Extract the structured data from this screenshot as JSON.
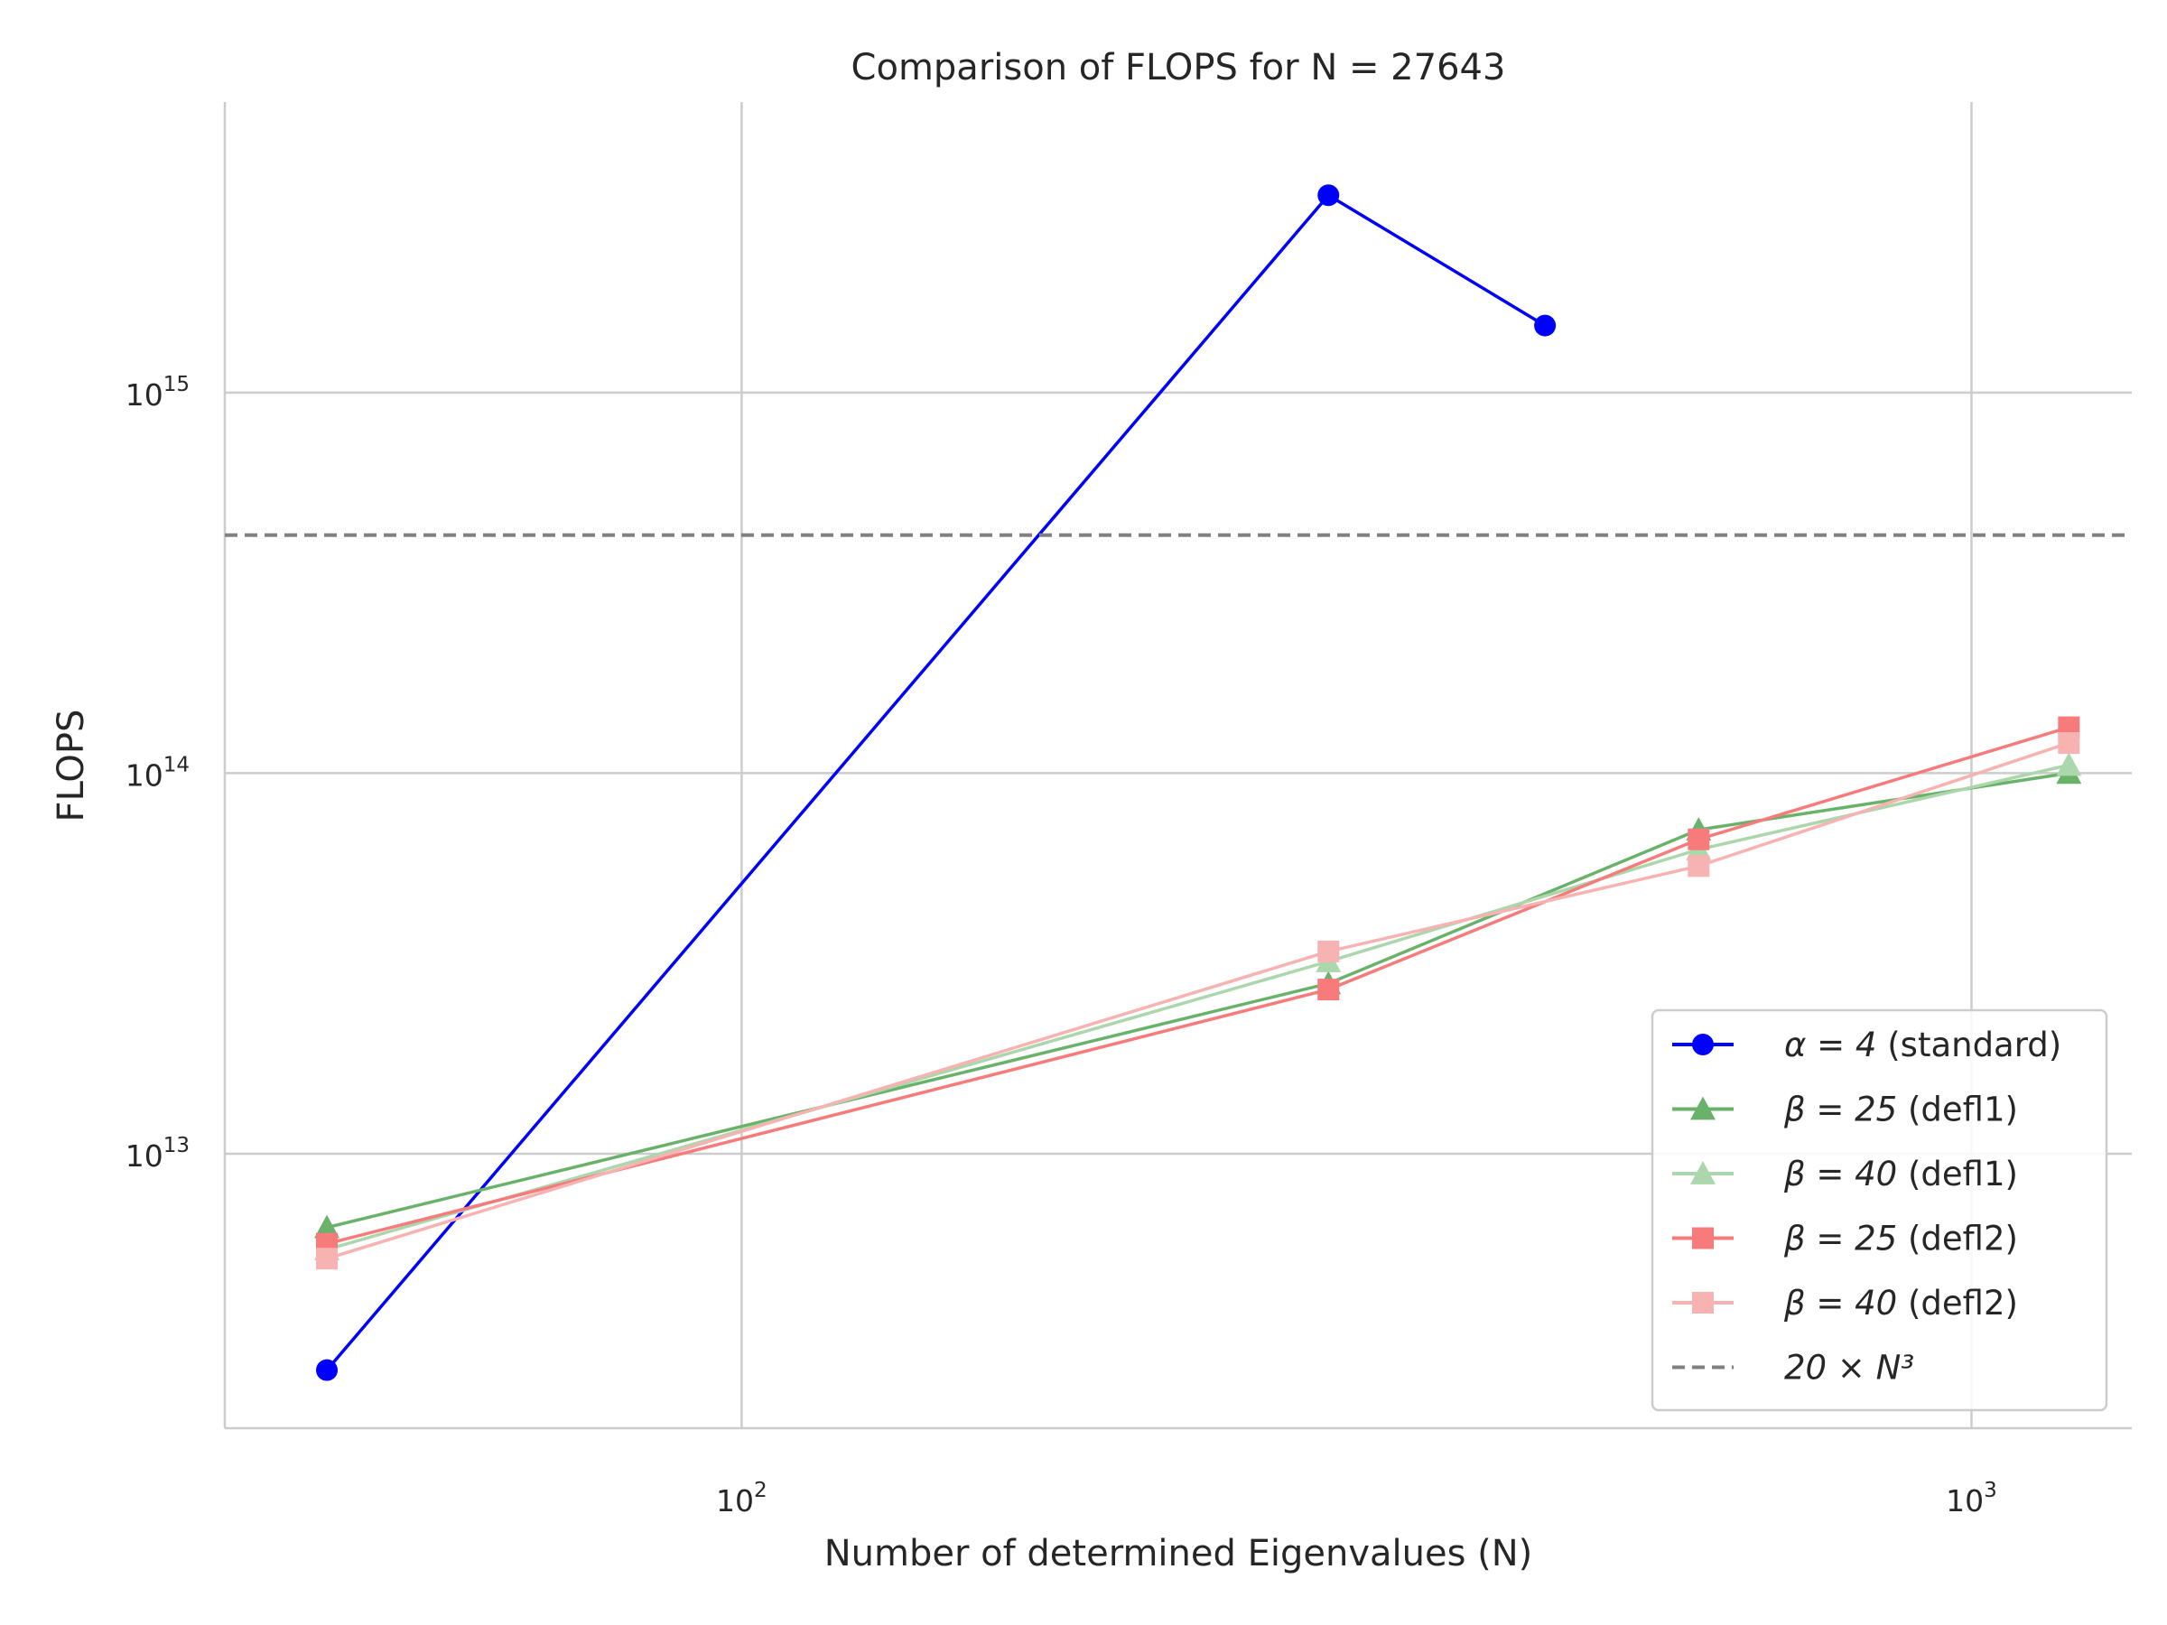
{
  "chart_data": {
    "type": "line",
    "title": "Comparison of FLOPS for N = 27643",
    "xlabel": "Number of determined Eigenvalues (N)",
    "ylabel": "FLOPS",
    "x_scale": "log",
    "y_scale": "log",
    "xlim": [
      38,
      1350
    ],
    "ylim": [
      1900000000000.0,
      5800000000000000.0
    ],
    "xticks": [
      {
        "value": 100,
        "base": "10",
        "exp": "2"
      },
      {
        "value": 1000,
        "base": "10",
        "exp": "3"
      }
    ],
    "yticks": [
      {
        "value": 10000000000000.0,
        "base": "10",
        "exp": "13"
      },
      {
        "value": 100000000000000.0,
        "base": "10",
        "exp": "14"
      },
      {
        "value": 1000000000000000.0,
        "base": "10",
        "exp": "15"
      }
    ],
    "grid": true,
    "legend_position": "lower-right",
    "series": [
      {
        "name_math": "α = 4",
        "name_text": " (standard)",
        "color": "#0000ff",
        "marker": "circle",
        "linestyle": "solid",
        "x": [
          46,
          300,
          450
        ],
        "y": [
          2700000000000.0,
          3300000000000000.0,
          1500000000000000.0
        ]
      },
      {
        "name_math": "β = 25",
        "name_text": " (defl1)",
        "color": "#6ab26a",
        "marker": "triangle",
        "linestyle": "solid",
        "x": [
          46,
          300,
          600,
          1200
        ],
        "y": [
          6400000000000.0,
          28000000000000.0,
          71000000000000.0,
          100000000000000.0
        ]
      },
      {
        "name_math": "β = 40",
        "name_text": " (defl1)",
        "color": "#acd6ac",
        "marker": "triangle",
        "linestyle": "solid",
        "x": [
          46,
          300,
          600,
          1200
        ],
        "y": [
          5600000000000.0,
          32000000000000.0,
          63000000000000.0,
          105000000000000.0
        ]
      },
      {
        "name_math": "β = 25",
        "name_text": " (defl2)",
        "color": "#f77b7b",
        "marker": "square",
        "linestyle": "solid",
        "x": [
          46,
          300,
          600,
          1200
        ],
        "y": [
          5800000000000.0,
          27000000000000.0,
          67000000000000.0,
          132000000000000.0
        ]
      },
      {
        "name_math": "β = 40",
        "name_text": " (defl2)",
        "color": "#f7b2b2",
        "marker": "square",
        "linestyle": "solid",
        "x": [
          46,
          300,
          600,
          1200
        ],
        "y": [
          5300000000000.0,
          34000000000000.0,
          57000000000000.0,
          120000000000000.0
        ]
      },
      {
        "name_math": "20 × N³",
        "name_text": "",
        "color": "#808080",
        "marker": "none",
        "linestyle": "dashed",
        "x": [
          38,
          1350
        ],
        "y": [
          422000000000000.0,
          422000000000000.0
        ]
      }
    ]
  }
}
